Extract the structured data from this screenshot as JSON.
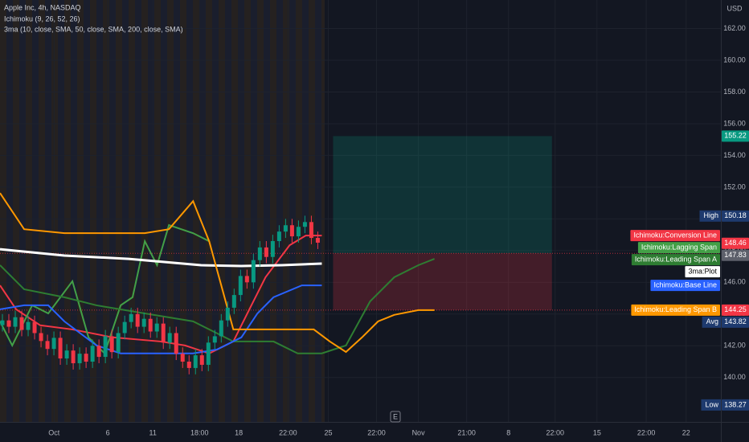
{
  "chart_data": {
    "type": "candlestick",
    "title": "Apple Inc, 4h, NASDAQ",
    "indicator_labels": [
      "Ichimoku (9, 26, 52, 26)",
      "3ma (10, close, SMA, 50, close, SMA, 200, close, SMA)"
    ],
    "currency": "USD",
    "earnings_marker": "E",
    "up_color": "#089981",
    "down_color": "#f23645",
    "xlim": [
      0,
      112
    ],
    "xticks": [
      {
        "value": 8.4,
        "label": "Oct"
      },
      {
        "value": 16.75,
        "label": "6"
      },
      {
        "value": 23.75,
        "label": "11"
      },
      {
        "value": 31,
        "label": "18:00"
      },
      {
        "value": 37.1,
        "label": "18"
      },
      {
        "value": 44.75,
        "label": "22:00"
      },
      {
        "value": 51,
        "label": "25"
      },
      {
        "value": 58.5,
        "label": "22:00"
      },
      {
        "value": 65,
        "label": "Nov"
      },
      {
        "value": 72.5,
        "label": "21:00"
      },
      {
        "value": 79,
        "label": "8"
      },
      {
        "value": 86.25,
        "label": "22:00"
      },
      {
        "value": 92.75,
        "label": "15"
      },
      {
        "value": 100.4,
        "label": "22:00"
      },
      {
        "value": 106.6,
        "label": "22"
      }
    ],
    "ylim": [
      137.2,
      163.8
    ],
    "yticks": [
      {
        "value": 140,
        "label": "140.00"
      },
      {
        "value": 142,
        "label": "142.00"
      },
      {
        "value": 144,
        "label": "144.00"
      },
      {
        "value": 146,
        "label": "146.00"
      },
      {
        "value": 148,
        "label": "148.00"
      },
      {
        "value": 150,
        "label": "150.00"
      },
      {
        "value": 152,
        "label": "152.00"
      },
      {
        "value": 154,
        "label": "154.00"
      },
      {
        "value": 156,
        "label": "156.00"
      },
      {
        "value": 158,
        "label": "158.00"
      },
      {
        "value": 160,
        "label": "160.00"
      },
      {
        "value": 162,
        "label": "162.00"
      }
    ],
    "grid": true,
    "x": [
      0,
      1,
      2,
      3,
      4,
      5,
      6,
      7,
      8,
      9,
      10,
      11,
      12,
      13,
      14,
      15,
      16,
      17,
      18,
      19,
      20,
      21,
      22,
      23,
      24,
      25,
      26,
      27,
      28,
      29,
      30,
      31,
      32,
      33,
      34,
      35,
      36,
      37,
      38,
      39,
      40,
      41,
      42,
      43,
      44,
      45,
      46,
      47,
      48,
      49
    ],
    "open": [
      143.3,
      143.6,
      143.2,
      143.8,
      143.0,
      143.5,
      142.8,
      142.3,
      141.8,
      142.5,
      141.2,
      141.7,
      140.9,
      141.5,
      141.0,
      142.0,
      141.3,
      142.6,
      141.6,
      142.8,
      143.5,
      144.0,
      143.2,
      143.7,
      142.9,
      143.4,
      142.2,
      142.8,
      141.5,
      141.0,
      140.6,
      141.4,
      140.8,
      142.2,
      142.6,
      143.6,
      144.4,
      145.2,
      146.4,
      146.0,
      147.4,
      148.2,
      147.6,
      148.6,
      149.2,
      149.6,
      148.9,
      149.5,
      149.8,
      148.8
    ],
    "high": [
      144.0,
      144.0,
      144.2,
      144.2,
      143.9,
      143.9,
      143.2,
      142.7,
      142.9,
      142.9,
      142.1,
      142.1,
      141.9,
      141.9,
      142.4,
      142.4,
      143.0,
      143.0,
      143.2,
      143.9,
      144.4,
      144.4,
      144.1,
      144.1,
      143.8,
      143.8,
      143.2,
      143.2,
      141.9,
      141.4,
      141.8,
      141.8,
      142.6,
      143.0,
      144.0,
      144.8,
      145.6,
      146.8,
      146.8,
      147.8,
      148.6,
      148.6,
      149.0,
      149.6,
      150.0,
      150.0,
      149.9,
      150.2,
      150.2,
      149.2
    ],
    "low": [
      142.9,
      142.8,
      142.8,
      142.6,
      142.6,
      142.4,
      141.9,
      141.4,
      141.4,
      140.8,
      140.8,
      140.5,
      140.5,
      140.6,
      140.6,
      140.9,
      140.9,
      141.2,
      141.2,
      142.4,
      143.1,
      142.8,
      142.8,
      142.5,
      142.5,
      141.8,
      141.8,
      141.1,
      140.6,
      140.2,
      140.2,
      140.4,
      140.4,
      141.8,
      142.2,
      143.2,
      144.0,
      144.8,
      145.6,
      145.6,
      147.0,
      147.2,
      147.2,
      148.2,
      148.8,
      148.5,
      148.5,
      149.1,
      148.4,
      148.1
    ],
    "close": [
      143.6,
      143.2,
      143.8,
      143.0,
      143.5,
      142.8,
      142.3,
      141.8,
      142.5,
      141.2,
      141.7,
      140.9,
      141.5,
      141.0,
      142.0,
      141.3,
      142.6,
      141.6,
      142.8,
      143.5,
      144.0,
      143.2,
      143.7,
      142.9,
      143.4,
      142.2,
      142.8,
      141.5,
      141.0,
      140.6,
      141.4,
      140.8,
      142.2,
      142.6,
      143.6,
      144.4,
      145.2,
      146.4,
      146.0,
      147.4,
      148.2,
      147.6,
      148.6,
      149.2,
      149.6,
      148.9,
      149.5,
      149.8,
      148.8,
      148.5
    ],
    "series": [
      {
        "name": "Ichimoku:Conversion Line",
        "color": "#f23645",
        "x": [
          0,
          2.5,
          6.25,
          11.25,
          17.5,
          25,
          28.75,
          32.5,
          36.25,
          38.75,
          41.25,
          45,
          47.5,
          50
        ],
        "values": [
          145.81,
          144.3,
          143.29,
          143.03,
          142.53,
          142.27,
          142.02,
          141.52,
          142.27,
          144.3,
          146.32,
          148.34,
          148.95,
          148.95
        ]
      },
      {
        "name": "Ichimoku:Lagging Span",
        "color": "#43a047",
        "x": [
          0,
          1.9,
          5,
          7.5,
          11.25,
          13.75,
          16.25,
          18.75,
          20.6,
          22.5,
          24.4,
          26.25,
          30,
          32.5
        ],
        "values": [
          143.54,
          142.02,
          144.55,
          144.04,
          146.07,
          142.53,
          141.52,
          144.55,
          145.06,
          148.59,
          147.08,
          149.61,
          149.1,
          148.59
        ]
      },
      {
        "name": "Ichimoku:Leading Span A",
        "color": "#2e7d32",
        "x": [
          0,
          3.75,
          10,
          15,
          22.5,
          30,
          36.25,
          42.5,
          46.25,
          50,
          53.75,
          57.5,
          61.25,
          65,
          67.5
        ],
        "values": [
          147.08,
          145.56,
          145.06,
          144.55,
          144.04,
          143.54,
          142.27,
          142.27,
          141.52,
          141.52,
          142.02,
          144.8,
          146.32,
          147.08,
          147.48
        ]
      },
      {
        "name": "3ma:Plot",
        "color": "#ffffff",
        "x": [
          0,
          10,
          20,
          31.25,
          37.5,
          43.75,
          50
        ],
        "values": [
          148.09,
          147.69,
          147.48,
          147.08,
          147.03,
          147.08,
          147.18
        ]
      },
      {
        "name": "Ichimoku:Base Line",
        "color": "#2962ff",
        "x": [
          0,
          3.75,
          7.5,
          10,
          15,
          18.75,
          25,
          30,
          33.75,
          37.5,
          40,
          42.5,
          46.9,
          50
        ],
        "values": [
          144.3,
          144.55,
          144.55,
          143.54,
          142.02,
          141.52,
          141.52,
          141.52,
          141.77,
          142.53,
          144.04,
          145.06,
          145.81,
          145.81
        ]
      },
      {
        "name": "Ichimoku:Leading Span B",
        "color": "#ff9800",
        "x": [
          0,
          3.75,
          10,
          22.5,
          26.25,
          30,
          32.5,
          36.25,
          48.75,
          51.25,
          53.75,
          56.25,
          58.75,
          61.25,
          65,
          67.5
        ],
        "values": [
          151.63,
          149.35,
          149.1,
          149.1,
          149.35,
          151.12,
          148.59,
          143.03,
          143.03,
          142.27,
          141.61,
          142.53,
          143.54,
          143.95,
          144.25,
          144.25
        ]
      }
    ],
    "position": {
      "x": [
        51.75,
        85.75
      ],
      "target": 155.22,
      "entry": 147.83,
      "stop": 144.25,
      "target_color": "#089981",
      "entry_color": "#5d606b",
      "stop_color": "#f23645"
    },
    "price_badges": [
      {
        "label": "High",
        "value": 150.18,
        "color": "#1e3a6e"
      },
      {
        "value": 148.46,
        "color": "#f23645"
      },
      {
        "label": "Avg",
        "value": 143.82,
        "color": "#1e3a6e"
      },
      {
        "label": "Low",
        "value": 138.27,
        "color": "#1e3a6e"
      }
    ]
  }
}
